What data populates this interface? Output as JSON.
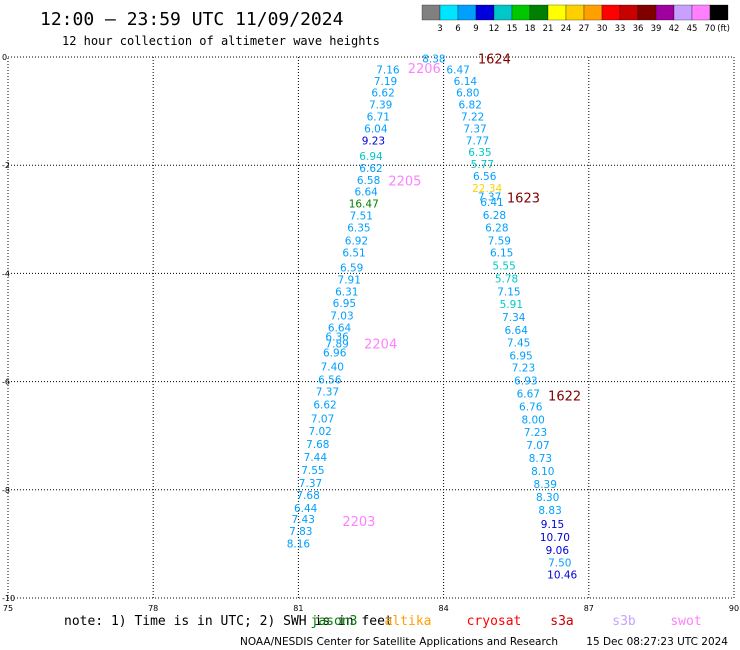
{
  "header": {
    "title": "12:00 – 23:59 UTC 11/09/2024",
    "subtitle": "12 hour collection of altimeter wave heights"
  },
  "colorbar": {
    "colors": [
      "#808080",
      "#00e5ff",
      "#00a0ff",
      "#0000dd",
      "#00c8c8",
      "#00c800",
      "#008000",
      "#ffff00",
      "#ffd000",
      "#ffa000",
      "#ff0000",
      "#c80000",
      "#800000",
      "#a000a0",
      "#c8a0ff",
      "#ff80ff",
      "#000000"
    ],
    "labels": [
      "3",
      "6",
      "9",
      "12",
      "15",
      "18",
      "21",
      "24",
      "27",
      "30",
      "33",
      "36",
      "39",
      "42",
      "45",
      "70"
    ],
    "unit": "(ft)"
  },
  "footer": {
    "note": "note:  1) Time is in UTC; 2) SWH is in feet",
    "missions": [
      {
        "name": "jason3",
        "color": "#008000"
      },
      {
        "name": "altika",
        "color": "#ffa000"
      },
      {
        "name": "cryosat",
        "color": "#ff0000"
      },
      {
        "name": "s3a",
        "color": "#c80000"
      },
      {
        "name": "s3b",
        "color": "#c8a0ff"
      },
      {
        "name": "swot",
        "color": "#ff80ff"
      }
    ],
    "credit": "NOAA/NESDIS Center for Satellite Applications and Research",
    "timestamp": "15 Dec 08:27:23 UTC 2024"
  },
  "chart_data": {
    "type": "scatter",
    "xlim": [
      75,
      90
    ],
    "ylim": [
      -10,
      0
    ],
    "x_ticks": [
      "75",
      "78",
      "81",
      "84",
      "87",
      "90"
    ],
    "y_ticks": [
      "0",
      "-2",
      "-4",
      "-6",
      "-8",
      "-10"
    ],
    "grid": true,
    "tracks": [
      {
        "points": [
          {
            "x": 82.85,
            "y": -0.23,
            "v": "7.16",
            "c": "#00a0ff"
          },
          {
            "x": 82.8,
            "y": -0.44,
            "v": "7.19",
            "c": "#00a0ff"
          },
          {
            "x": 82.75,
            "y": -0.66,
            "v": "6.62",
            "c": "#00a0ff"
          },
          {
            "x": 82.7,
            "y": -0.88,
            "v": "7.39",
            "c": "#00a0ff"
          },
          {
            "x": 82.65,
            "y": -1.1,
            "v": "6.71",
            "c": "#00a0ff"
          },
          {
            "x": 82.6,
            "y": -1.32,
            "v": "6.04",
            "c": "#00a0ff"
          },
          {
            "x": 82.55,
            "y": -1.54,
            "v": "9.23",
            "c": "#0000dd"
          },
          {
            "x": 82.5,
            "y": -1.83,
            "v": "6.94",
            "c": "#00c8c8"
          },
          {
            "x": 82.5,
            "y": -2.05,
            "v": "6.62",
            "c": "#00a0ff"
          },
          {
            "x": 82.45,
            "y": -2.27,
            "v": "6.58",
            "c": "#00a0ff"
          },
          {
            "x": 82.4,
            "y": -2.49,
            "v": "6.64",
            "c": "#00a0ff"
          },
          {
            "x": 82.35,
            "y": -2.71,
            "v": "16.47",
            "c": "#008000"
          },
          {
            "x": 82.3,
            "y": -2.93,
            "v": "7.51",
            "c": "#00a0ff"
          },
          {
            "x": 82.25,
            "y": -3.15,
            "v": "6.35",
            "c": "#00a0ff"
          },
          {
            "x": 82.2,
            "y": -3.39,
            "v": "6.92",
            "c": "#00a0ff"
          },
          {
            "x": 82.15,
            "y": -3.61,
            "v": "6.51",
            "c": "#00a0ff"
          },
          {
            "x": 82.1,
            "y": -3.89,
            "v": "6.59",
            "c": "#00a0ff"
          },
          {
            "x": 82.05,
            "y": -4.11,
            "v": "7.91",
            "c": "#00a0ff"
          },
          {
            "x": 82.0,
            "y": -4.33,
            "v": "6.31",
            "c": "#00a0ff"
          },
          {
            "x": 81.95,
            "y": -4.55,
            "v": "6.95",
            "c": "#00a0ff"
          },
          {
            "x": 81.9,
            "y": -4.78,
            "v": "7.03",
            "c": "#00a0ff"
          },
          {
            "x": 81.85,
            "y": -5.0,
            "v": "6.64",
            "c": "#00a0ff"
          },
          {
            "x": 81.8,
            "y": -5.17,
            "v": "6.36",
            "c": "#00a0ff"
          },
          {
            "x": 81.8,
            "y": -5.3,
            "v": "7.89",
            "c": "#00a0ff"
          },
          {
            "x": 81.75,
            "y": -5.46,
            "v": "6.96",
            "c": "#00a0ff"
          },
          {
            "x": 81.7,
            "y": -5.72,
            "v": "7.40",
            "c": "#00a0ff"
          },
          {
            "x": 81.65,
            "y": -5.96,
            "v": "6.56",
            "c": "#00a0ff"
          },
          {
            "x": 81.6,
            "y": -6.18,
            "v": "7.37",
            "c": "#00a0ff"
          },
          {
            "x": 81.55,
            "y": -6.42,
            "v": "6.62",
            "c": "#00a0ff"
          },
          {
            "x": 81.5,
            "y": -6.68,
            "v": "7.07",
            "c": "#00a0ff"
          },
          {
            "x": 81.45,
            "y": -6.91,
            "v": "7.02",
            "c": "#00a0ff"
          },
          {
            "x": 81.4,
            "y": -7.15,
            "v": "7.68",
            "c": "#00a0ff"
          },
          {
            "x": 81.35,
            "y": -7.39,
            "v": "7.44",
            "c": "#00a0ff"
          },
          {
            "x": 81.3,
            "y": -7.63,
            "v": "7.55",
            "c": "#00a0ff"
          },
          {
            "x": 81.25,
            "y": -7.87,
            "v": "7.37",
            "c": "#00a0ff"
          },
          {
            "x": 81.2,
            "y": -8.1,
            "v": "7.68",
            "c": "#00a0ff"
          },
          {
            "x": 81.15,
            "y": -8.34,
            "v": "6.44",
            "c": "#00a0ff"
          },
          {
            "x": 81.1,
            "y": -8.54,
            "v": "7.43",
            "c": "#00a0ff"
          },
          {
            "x": 81.05,
            "y": -8.76,
            "v": "7.83",
            "c": "#00a0ff"
          },
          {
            "x": 81.0,
            "y": -8.99,
            "v": "8.16",
            "c": "#00a0ff"
          }
        ],
        "labels": [
          {
            "x": 83.6,
            "y": -0.2,
            "t": "2206",
            "c": "#ff80ff"
          },
          {
            "x": 83.2,
            "y": -2.28,
            "t": "2205",
            "c": "#ff80ff"
          },
          {
            "x": 82.7,
            "y": -5.3,
            "t": "2204",
            "c": "#ff80ff"
          },
          {
            "x": 82.25,
            "y": -8.58,
            "t": "2203",
            "c": "#ff80ff"
          }
        ]
      },
      {
        "points": [
          {
            "x": 83.8,
            "y": -0.03,
            "v": "8.38",
            "c": "#00a0ff"
          },
          {
            "x": 84.3,
            "y": -0.23,
            "v": "6.47",
            "c": "#00a0ff"
          },
          {
            "x": 84.45,
            "y": -0.44,
            "v": "6.14",
            "c": "#00a0ff"
          },
          {
            "x": 84.5,
            "y": -0.66,
            "v": "6.80",
            "c": "#00a0ff"
          },
          {
            "x": 84.55,
            "y": -0.88,
            "v": "6.82",
            "c": "#00a0ff"
          },
          {
            "x": 84.6,
            "y": -1.1,
            "v": "7.22",
            "c": "#00a0ff"
          },
          {
            "x": 84.65,
            "y": -1.32,
            "v": "7.37",
            "c": "#00a0ff"
          },
          {
            "x": 84.7,
            "y": -1.54,
            "v": "7.77",
            "c": "#00a0ff"
          },
          {
            "x": 84.75,
            "y": -1.76,
            "v": "6.35",
            "c": "#00c8c8"
          },
          {
            "x": 84.8,
            "y": -1.98,
            "v": "5.77",
            "c": "#00c8c8"
          },
          {
            "x": 84.85,
            "y": -2.2,
            "v": "6.56",
            "c": "#00a0ff"
          },
          {
            "x": 84.9,
            "y": -2.42,
            "v": "22.34",
            "c": "#ffd000"
          },
          {
            "x": 84.95,
            "y": -2.58,
            "v": "7.37",
            "c": "#00a0ff"
          },
          {
            "x": 85.0,
            "y": -2.68,
            "v": "6.41",
            "c": "#00a0ff"
          },
          {
            "x": 85.05,
            "y": -2.92,
            "v": "6.28",
            "c": "#00a0ff"
          },
          {
            "x": 85.1,
            "y": -3.15,
            "v": "6.28",
            "c": "#00a0ff"
          },
          {
            "x": 85.15,
            "y": -3.39,
            "v": "7.59",
            "c": "#00a0ff"
          },
          {
            "x": 85.2,
            "y": -3.61,
            "v": "6.15",
            "c": "#00a0ff"
          },
          {
            "x": 85.25,
            "y": -3.85,
            "v": "5.55",
            "c": "#00c8c8"
          },
          {
            "x": 85.3,
            "y": -4.09,
            "v": "5.78",
            "c": "#00c8c8"
          },
          {
            "x": 85.35,
            "y": -4.33,
            "v": "7.15",
            "c": "#00a0ff"
          },
          {
            "x": 85.4,
            "y": -4.57,
            "v": "5.91",
            "c": "#00c8c8"
          },
          {
            "x": 85.45,
            "y": -4.81,
            "v": "7.34",
            "c": "#00a0ff"
          },
          {
            "x": 85.5,
            "y": -5.05,
            "v": "6.64",
            "c": "#00a0ff"
          },
          {
            "x": 85.55,
            "y": -5.28,
            "v": "7.45",
            "c": "#00a0ff"
          },
          {
            "x": 85.6,
            "y": -5.52,
            "v": "6.95",
            "c": "#00a0ff"
          },
          {
            "x": 85.65,
            "y": -5.74,
            "v": "7.23",
            "c": "#00a0ff"
          },
          {
            "x": 85.7,
            "y": -5.98,
            "v": "6.93",
            "c": "#00a0ff"
          },
          {
            "x": 85.75,
            "y": -6.22,
            "v": "6.67",
            "c": "#00a0ff"
          },
          {
            "x": 85.8,
            "y": -6.46,
            "v": "6.76",
            "c": "#00a0ff"
          },
          {
            "x": 85.85,
            "y": -6.7,
            "v": "8.00",
            "c": "#00a0ff"
          },
          {
            "x": 85.9,
            "y": -6.93,
            "v": "7.23",
            "c": "#00a0ff"
          },
          {
            "x": 85.95,
            "y": -7.17,
            "v": "7.07",
            "c": "#00a0ff"
          },
          {
            "x": 86.0,
            "y": -7.41,
            "v": "8.73",
            "c": "#00a0ff"
          },
          {
            "x": 86.05,
            "y": -7.65,
            "v": "8.10",
            "c": "#00a0ff"
          },
          {
            "x": 86.1,
            "y": -7.89,
            "v": "8.39",
            "c": "#00a0ff"
          },
          {
            "x": 86.15,
            "y": -8.13,
            "v": "8.30",
            "c": "#00a0ff"
          },
          {
            "x": 86.2,
            "y": -8.37,
            "v": "8.83",
            "c": "#00a0ff"
          },
          {
            "x": 86.25,
            "y": -8.63,
            "v": "9.15",
            "c": "#0000dd"
          },
          {
            "x": 86.3,
            "y": -8.87,
            "v": "10.70",
            "c": "#0000dd"
          },
          {
            "x": 86.35,
            "y": -9.11,
            "v": "9.06",
            "c": "#0000dd"
          },
          {
            "x": 86.4,
            "y": -9.34,
            "v": "7.50",
            "c": "#00a0ff"
          },
          {
            "x": 86.45,
            "y": -9.57,
            "v": "10.46",
            "c": "#0000dd"
          }
        ],
        "labels": [
          {
            "x": 85.05,
            "y": -0.03,
            "t": "1624",
            "c": "#800000"
          },
          {
            "x": 85.65,
            "y": -2.6,
            "t": "1623",
            "c": "#800000"
          },
          {
            "x": 86.5,
            "y": -6.26,
            "t": "1622",
            "c": "#800000"
          }
        ]
      }
    ]
  }
}
